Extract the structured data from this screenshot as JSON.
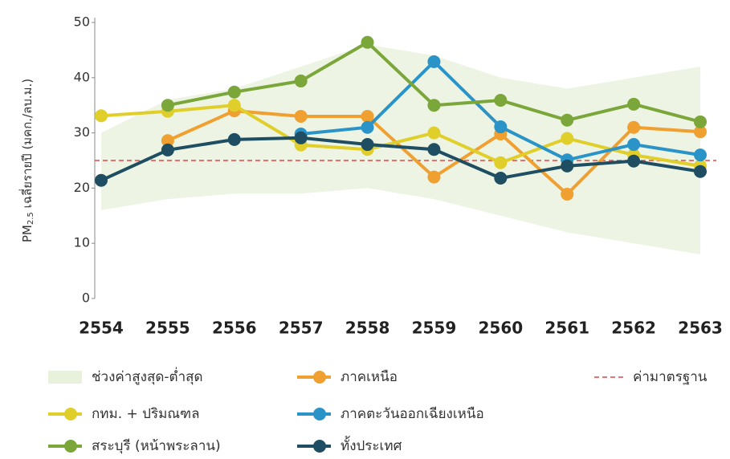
{
  "chart_data": {
    "type": "line",
    "y_label_prefix": "PM",
    "y_label_sub": "2.5",
    "y_label": "เฉลี่ยรายปี (มคก./ลบ.ม.)",
    "categories": [
      "2554",
      "2555",
      "2556",
      "2557",
      "2558",
      "2559",
      "2560",
      "2561",
      "2562",
      "2563"
    ],
    "ylim": [
      0,
      50
    ],
    "yticks": [
      0,
      10,
      20,
      30,
      40,
      50
    ],
    "range_band": {
      "name": "ช่วงค่าสูงสุด-ต่ำสุด",
      "color": "#e8f1dc",
      "upper": [
        30,
        36,
        38,
        42,
        46,
        44,
        40,
        38,
        40,
        42
      ],
      "lower": [
        16,
        18,
        19,
        19,
        20,
        18,
        15,
        12,
        10,
        8
      ]
    },
    "reference": {
      "name": "ค่ามาตรฐาน",
      "value": 25,
      "color": "#e04848"
    },
    "series": [
      {
        "name": "ภาคเหนือ",
        "color": "#f0a030",
        "values": [
          null,
          28.6,
          34,
          33,
          33,
          22,
          29.8,
          18.9,
          31,
          30.2
        ]
      },
      {
        "name": "กทม. + ปริมณฑล",
        "color": "#e0cf2a",
        "values": [
          33.1,
          33.9,
          35,
          27.8,
          27,
          30,
          24.6,
          29,
          26,
          24
        ]
      },
      {
        "name": "ภาคตะวันออกเฉียงเหนือ",
        "color": "#2a94c8",
        "values": [
          null,
          null,
          null,
          29.8,
          31,
          42.9,
          31.1,
          25.1,
          27.9,
          26
        ]
      },
      {
        "name": "สระบุรี (หน้าพระลาน)",
        "color": "#7aa63a",
        "values": [
          null,
          35,
          37.4,
          39.4,
          46.4,
          35,
          35.9,
          32.3,
          35.2,
          32
        ]
      },
      {
        "name": "ทั้งประเทศ",
        "color": "#1f4e63",
        "values": [
          21.4,
          26.9,
          28.8,
          29.1,
          27.9,
          27,
          21.8,
          24,
          24.9,
          23
        ]
      }
    ]
  }
}
